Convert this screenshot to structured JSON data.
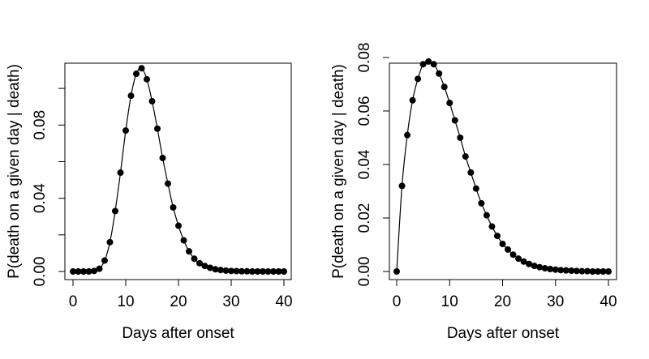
{
  "chart_data": [
    {
      "type": "line",
      "title": "",
      "xlabel": "Days after onset",
      "ylabel": "P(death on a given day | death)",
      "xlim": [
        0,
        40
      ],
      "ylim": [
        0,
        0.112
      ],
      "xticks": [
        0,
        10,
        20,
        30,
        40
      ],
      "xtick_labels": [
        "0",
        "10",
        "20",
        "30",
        "40"
      ],
      "yticks": [
        0.0,
        0.02,
        0.04,
        0.06,
        0.08,
        0.1
      ],
      "ytick_labels": [
        "0.00",
        "",
        "0.04",
        "",
        "0.08",
        ""
      ],
      "markers": "filled circles",
      "grid": false,
      "x": [
        0,
        1,
        2,
        3,
        4,
        5,
        6,
        7,
        8,
        9,
        10,
        11,
        12,
        13,
        14,
        15,
        16,
        17,
        18,
        19,
        20,
        21,
        22,
        23,
        24,
        25,
        26,
        27,
        28,
        29,
        30,
        31,
        32,
        33,
        34,
        35,
        36,
        37,
        38,
        39,
        40
      ],
      "y": [
        0.0,
        0.0,
        0.0,
        0.0,
        0.0003,
        0.0015,
        0.006,
        0.016,
        0.033,
        0.054,
        0.077,
        0.096,
        0.108,
        0.111,
        0.105,
        0.093,
        0.078,
        0.062,
        0.048,
        0.035,
        0.025,
        0.017,
        0.011,
        0.007,
        0.0045,
        0.003,
        0.002,
        0.0012,
        0.0008,
        0.0005,
        0.0003,
        0.0002,
        0.0001,
        0.0001,
        0.0,
        0.0,
        0.0,
        0.0,
        0.0,
        0.0,
        0.0
      ]
    },
    {
      "type": "line",
      "title": "",
      "xlabel": "Days after onset",
      "ylabel": "P(death on a given day | death)",
      "xlim": [
        0,
        40
      ],
      "ylim": [
        0,
        0.0815
      ],
      "xticks": [
        0,
        10,
        20,
        30,
        40
      ],
      "xtick_labels": [
        "0",
        "10",
        "20",
        "30",
        "40"
      ],
      "yticks": [
        0.0,
        0.02,
        0.04,
        0.06,
        0.08
      ],
      "ytick_labels": [
        "0.00",
        "0.02",
        "0.04",
        "0.06",
        "0.08"
      ],
      "markers": "filled circles",
      "grid": false,
      "x": [
        0,
        1,
        2,
        3,
        4,
        5,
        6,
        7,
        8,
        9,
        10,
        11,
        12,
        13,
        14,
        15,
        16,
        17,
        18,
        19,
        20,
        21,
        22,
        23,
        24,
        25,
        26,
        27,
        28,
        29,
        30,
        31,
        32,
        33,
        34,
        35,
        36,
        37,
        38,
        39,
        40
      ],
      "y": [
        0.0,
        0.032,
        0.051,
        0.064,
        0.072,
        0.0775,
        0.0785,
        0.0775,
        0.074,
        0.069,
        0.063,
        0.0565,
        0.05,
        0.043,
        0.037,
        0.031,
        0.0255,
        0.021,
        0.0168,
        0.0133,
        0.0103,
        0.0082,
        0.0063,
        0.0048,
        0.0037,
        0.0028,
        0.0021,
        0.0016,
        0.0012,
        0.0009,
        0.0007,
        0.0005,
        0.0004,
        0.0003,
        0.0002,
        0.0001,
        0.0001,
        0.0,
        0.0,
        0.0,
        0.0
      ]
    }
  ]
}
